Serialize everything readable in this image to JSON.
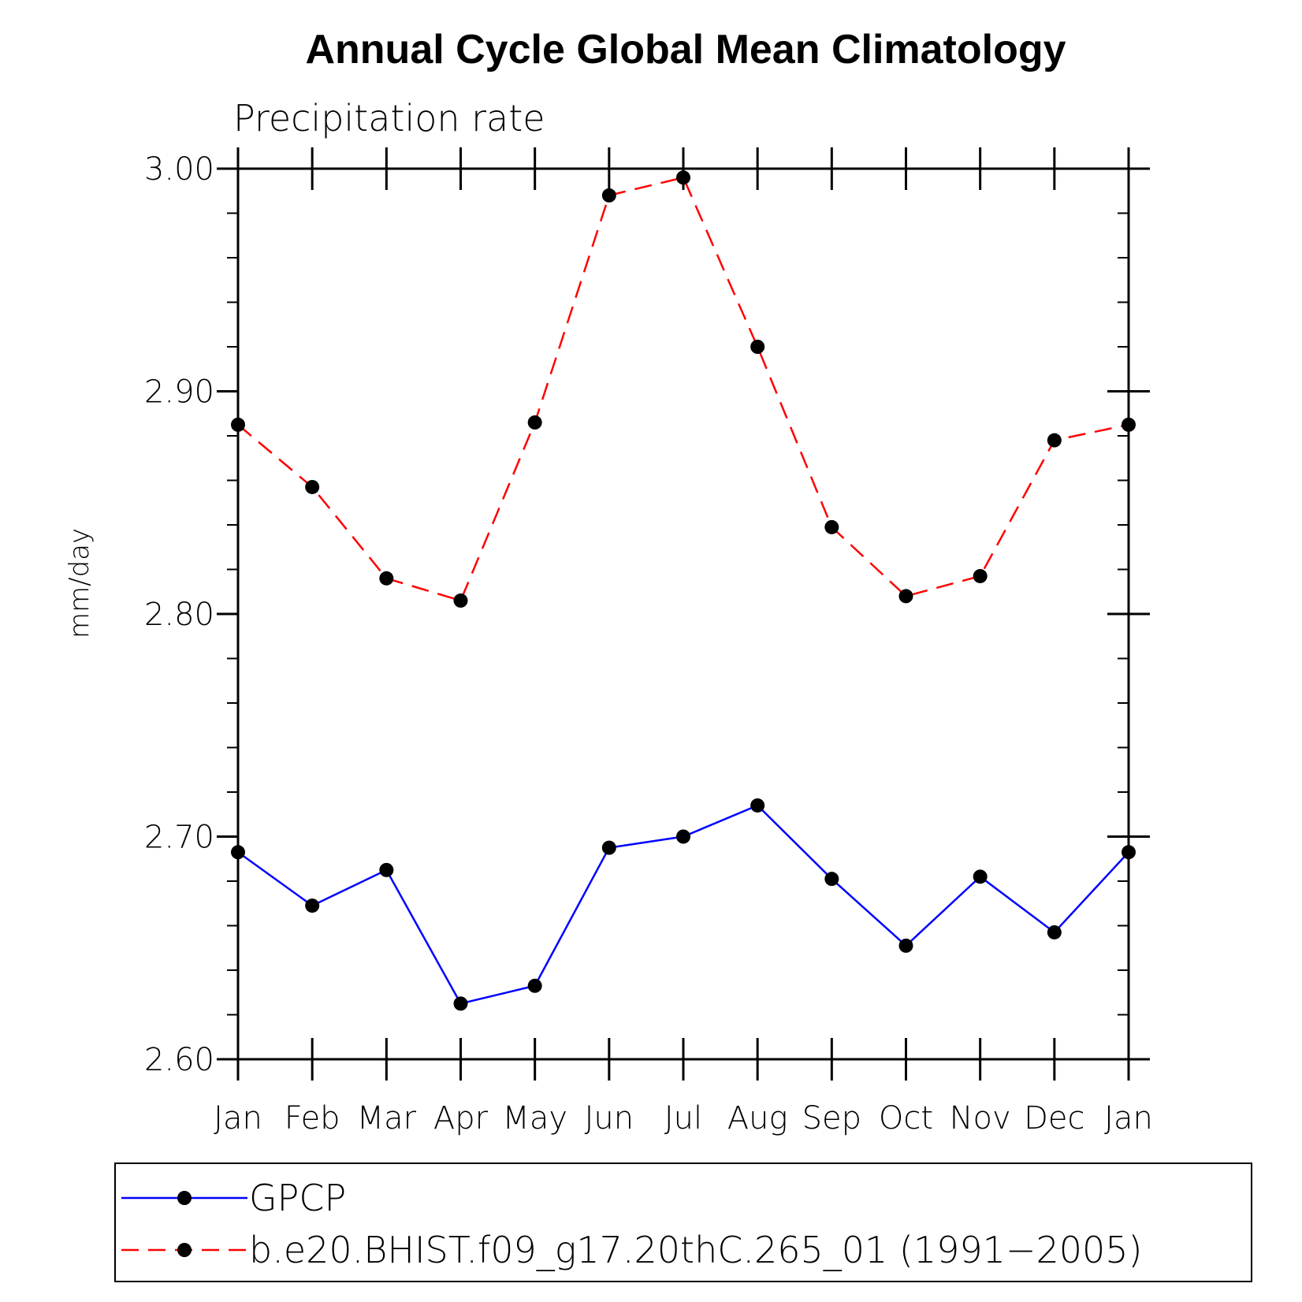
{
  "chart_data": {
    "type": "line",
    "title": "Annual Cycle Global Mean Climatology",
    "subtitle": "Precipitation rate",
    "ylabel": "mm/day",
    "xlabel": "",
    "categories": [
      "Jan",
      "Feb",
      "Mar",
      "Apr",
      "May",
      "Jun",
      "Jul",
      "Aug",
      "Sep",
      "Oct",
      "Nov",
      "Dec",
      "Jan"
    ],
    "ylim": [
      2.6,
      3.0
    ],
    "yticks": [
      "2.60",
      "2.70",
      "2.80",
      "2.90",
      "3.00"
    ],
    "grid": false,
    "legend_position": "bottom",
    "series": [
      {
        "name": "GPCP",
        "color": "#0000ff",
        "line_style": "solid",
        "marker": "filled-circle",
        "values": [
          2.693,
          2.669,
          2.685,
          2.625,
          2.633,
          2.695,
          2.7,
          2.714,
          2.681,
          2.651,
          2.682,
          2.657,
          2.693
        ]
      },
      {
        "name": "b.e20.BHIST.f09_g17.20thC.265_01 (1991−2005)",
        "color": "#ff0000",
        "line_style": "dashed",
        "marker": "filled-circle",
        "values": [
          2.885,
          2.857,
          2.816,
          2.806,
          2.886,
          2.988,
          2.996,
          2.92,
          2.839,
          2.808,
          2.817,
          2.878,
          2.885
        ]
      }
    ]
  }
}
